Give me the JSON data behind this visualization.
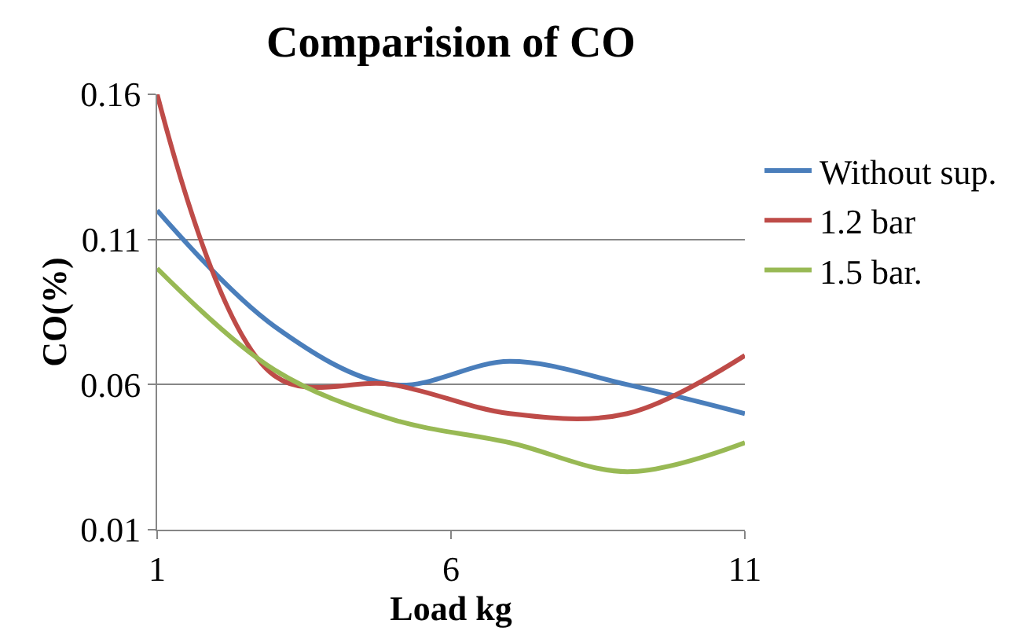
{
  "chart_data": {
    "type": "line",
    "title": "Comparision of CO",
    "xlabel": "Load kg",
    "ylabel": "CO(%)",
    "x": [
      1,
      3,
      5,
      7,
      9,
      11
    ],
    "series": [
      {
        "name": "Without sup.",
        "color": "#4a7ebb",
        "values": [
          0.12,
          0.08,
          0.06,
          0.068,
          0.06,
          0.05
        ]
      },
      {
        "name": "1.2 bar",
        "color": "#be4b48",
        "values": [
          0.16,
          0.063,
          0.06,
          0.05,
          0.05,
          0.07
        ]
      },
      {
        "name": "1.5 bar.",
        "color": "#98b954",
        "values": [
          0.1,
          0.065,
          0.048,
          0.04,
          0.03,
          0.04
        ]
      }
    ],
    "xlim": [
      1,
      11
    ],
    "xticks": [
      1,
      6,
      11
    ],
    "ylim": [
      0.01,
      0.16
    ],
    "yticks": [
      0.16,
      0.11,
      0.06,
      0.01
    ],
    "grid": "y",
    "legend": "right",
    "marker": "none",
    "line_style": "solid"
  }
}
